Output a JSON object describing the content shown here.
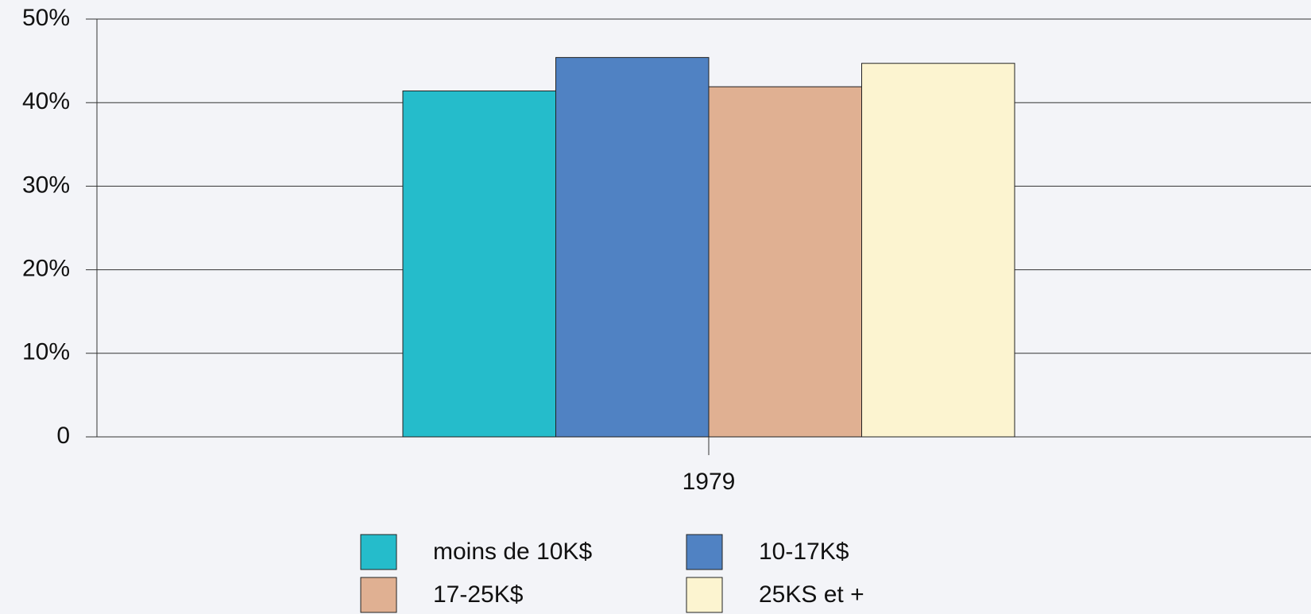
{
  "chart_data": {
    "type": "bar",
    "categories": [
      "1979"
    ],
    "series": [
      {
        "name": "moins de 10K$",
        "color": "#25bccb",
        "values": [
          41.4
        ]
      },
      {
        "name": "10-17K$",
        "color": "#5082c3",
        "values": [
          45.4
        ]
      },
      {
        "name": "17-25K$",
        "color": "#e0b092",
        "values": [
          41.9
        ]
      },
      {
        "name": "25KS et +",
        "color": "#fcf4d0",
        "values": [
          44.7
        ]
      }
    ],
    "ylim": [
      0,
      50
    ],
    "yticks": [
      0,
      {
        "value": 10,
        "label": "10%"
      },
      {
        "value": 20,
        "label": "20%"
      },
      {
        "value": 30,
        "label": "30%"
      },
      {
        "value": 40,
        "label": "40%"
      },
      {
        "value": 50,
        "label": "50%"
      }
    ],
    "grid": true
  }
}
